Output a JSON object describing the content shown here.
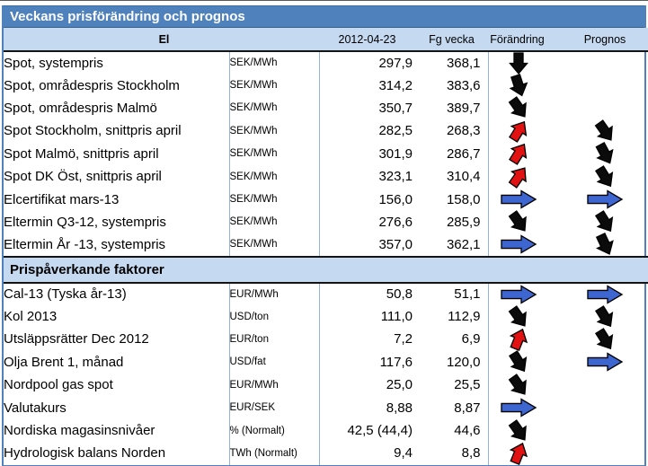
{
  "title": "Veckans prisförändring och prognos",
  "columns": {
    "date": "2012-04-23",
    "prev": "Fg vecka",
    "change": "Förändring",
    "forecast": "Prognos"
  },
  "sections": [
    {
      "heading": "El",
      "rows": [
        {
          "label": "Spot, systempris",
          "unit": "SEK/MWh",
          "current": "297,9",
          "previous": "368,1",
          "change": {
            "color": "black",
            "angle": 90
          },
          "forecast": null
        },
        {
          "label": "Spot, områdespris Stockholm",
          "unit": "SEK/MWh",
          "current": "314,2",
          "previous": "383,6",
          "change": {
            "color": "black",
            "angle": 72
          },
          "forecast": null
        },
        {
          "label": "Spot, områdespris Malmö",
          "unit": "SEK/MWh",
          "current": "350,7",
          "previous": "389,7",
          "change": {
            "color": "black",
            "angle": 55
          },
          "forecast": null
        },
        {
          "label": "Spot Stockholm, snittpris april",
          "unit": "SEK/MWh",
          "current": "282,5",
          "previous": "268,3",
          "change": {
            "color": "red",
            "angle": -58
          },
          "forecast": {
            "color": "black",
            "angle": 55
          }
        },
        {
          "label": "Spot Malmö, snittpris april",
          "unit": "SEK/MWh",
          "current": "301,9",
          "previous": "286,7",
          "change": {
            "color": "red",
            "angle": -58
          },
          "forecast": {
            "color": "black",
            "angle": 62
          }
        },
        {
          "label": "Spot DK Öst, snittpris april",
          "unit": "SEK/MWh",
          "current": "323,1",
          "previous": "310,4",
          "change": {
            "color": "red",
            "angle": -55
          },
          "forecast": {
            "color": "black",
            "angle": 58
          }
        },
        {
          "label": "Elcertifikat mars-13",
          "unit": "SEK/MWh",
          "current": "156,0",
          "previous": "158,0",
          "change": {
            "color": "blue",
            "angle": 0
          },
          "forecast": {
            "color": "blue",
            "angle": 0
          }
        },
        {
          "label": "Eltermin Q3-12, systempris",
          "unit": "SEK/MWh",
          "current": "276,6",
          "previous": "285,9",
          "change": {
            "color": "black",
            "angle": 55
          },
          "forecast": {
            "color": "black",
            "angle": 58
          }
        },
        {
          "label": "Eltermin År -13, systempris",
          "unit": "SEK/MWh",
          "current": "357,0",
          "previous": "362,1",
          "change": {
            "color": "blue",
            "angle": 0
          },
          "forecast": {
            "color": "black",
            "angle": 65
          }
        }
      ]
    },
    {
      "heading": "Prispåverkande faktorer",
      "rows": [
        {
          "label": "Cal-13 (Tyska år-13)",
          "unit": "EUR/MWh",
          "current": "50,8",
          "previous": "51,1",
          "change": {
            "color": "blue",
            "angle": 0
          },
          "forecast": {
            "color": "blue",
            "angle": 0
          }
        },
        {
          "label": "Kol 2013",
          "unit": "USD/ton",
          "current": "111,0",
          "previous": "112,9",
          "change": {
            "color": "black",
            "angle": 55
          },
          "forecast": {
            "color": "black",
            "angle": 58
          }
        },
        {
          "label": "Utsläppsrätter Dec 2012",
          "unit": "EUR/ton",
          "current": "7,2",
          "previous": "6,9",
          "change": {
            "color": "red",
            "angle": -68
          },
          "forecast": {
            "color": "black",
            "angle": 58
          }
        },
        {
          "label": "Olja Brent 1, månad",
          "unit": "USD/fat",
          "current": "117,6",
          "previous": "120,0",
          "change": {
            "color": "black",
            "angle": 58
          },
          "forecast": {
            "color": "blue",
            "angle": 0
          }
        },
        {
          "label": "Nordpool gas spot",
          "unit": "EUR/MWh",
          "current": "25,0",
          "previous": "25,5",
          "change": {
            "color": "black",
            "angle": 55
          },
          "forecast": null
        },
        {
          "label": "Valutakurs",
          "unit": "EUR/SEK",
          "current": "8,88",
          "previous": "8,87",
          "change": {
            "color": "blue",
            "angle": 0
          },
          "forecast": null
        },
        {
          "label": "Nordiska magasinsnivåer",
          "unit": "% (Normalt)",
          "current": "42,5 (44,4)",
          "previous": "44,6",
          "change": {
            "color": "black",
            "angle": 55
          },
          "forecast": null
        },
        {
          "label": "Hydrologisk balans Norden",
          "unit": "TWh (Normalt)",
          "current": "9,4",
          "previous": "8,8",
          "change": {
            "color": "red",
            "angle": -68
          },
          "forecast": null
        }
      ]
    }
  ],
  "colors": {
    "title_bg": "#4F81BD",
    "header_bg": "#C5D9F1",
    "inner_border": "#95B3D7",
    "outer_border": "#4F81BD",
    "arrow_black": "#0B0B0B",
    "arrow_red": "#E31212",
    "arrow_blue": "#3E66D0"
  }
}
